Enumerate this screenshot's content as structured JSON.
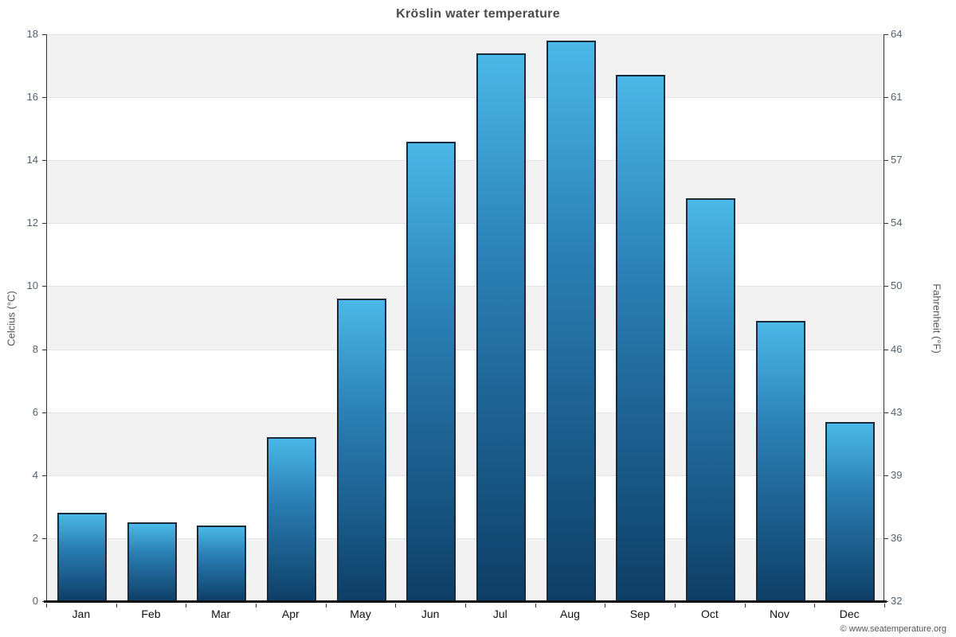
{
  "chart_data": {
    "type": "bar",
    "title": "Kröslin water temperature",
    "categories": [
      "Jan",
      "Feb",
      "Mar",
      "Apr",
      "May",
      "Jun",
      "Jul",
      "Aug",
      "Sep",
      "Oct",
      "Nov",
      "Dec"
    ],
    "values": [
      2.8,
      2.5,
      2.4,
      5.2,
      9.6,
      14.6,
      17.4,
      17.8,
      16.7,
      12.8,
      8.9,
      5.7
    ],
    "ylabel_left": "Celcius (°C)",
    "ylabel_right": "Fahrenheit (°F)",
    "ylim": [
      0,
      18
    ],
    "yticks_left": [
      0,
      2,
      4,
      6,
      8,
      10,
      12,
      14,
      16,
      18
    ],
    "yticks_right": [
      32,
      36,
      39,
      43,
      46,
      50,
      54,
      57,
      61,
      64
    ],
    "grid": true,
    "legend": "none",
    "bar_color_top": "#4ab8e8",
    "bar_color_bottom": "#0d3e66",
    "bar_border_color": "#1b2a38",
    "band_color": "#f2f2f2"
  },
  "footer": {
    "credit": "© www.seatemperature.org"
  }
}
